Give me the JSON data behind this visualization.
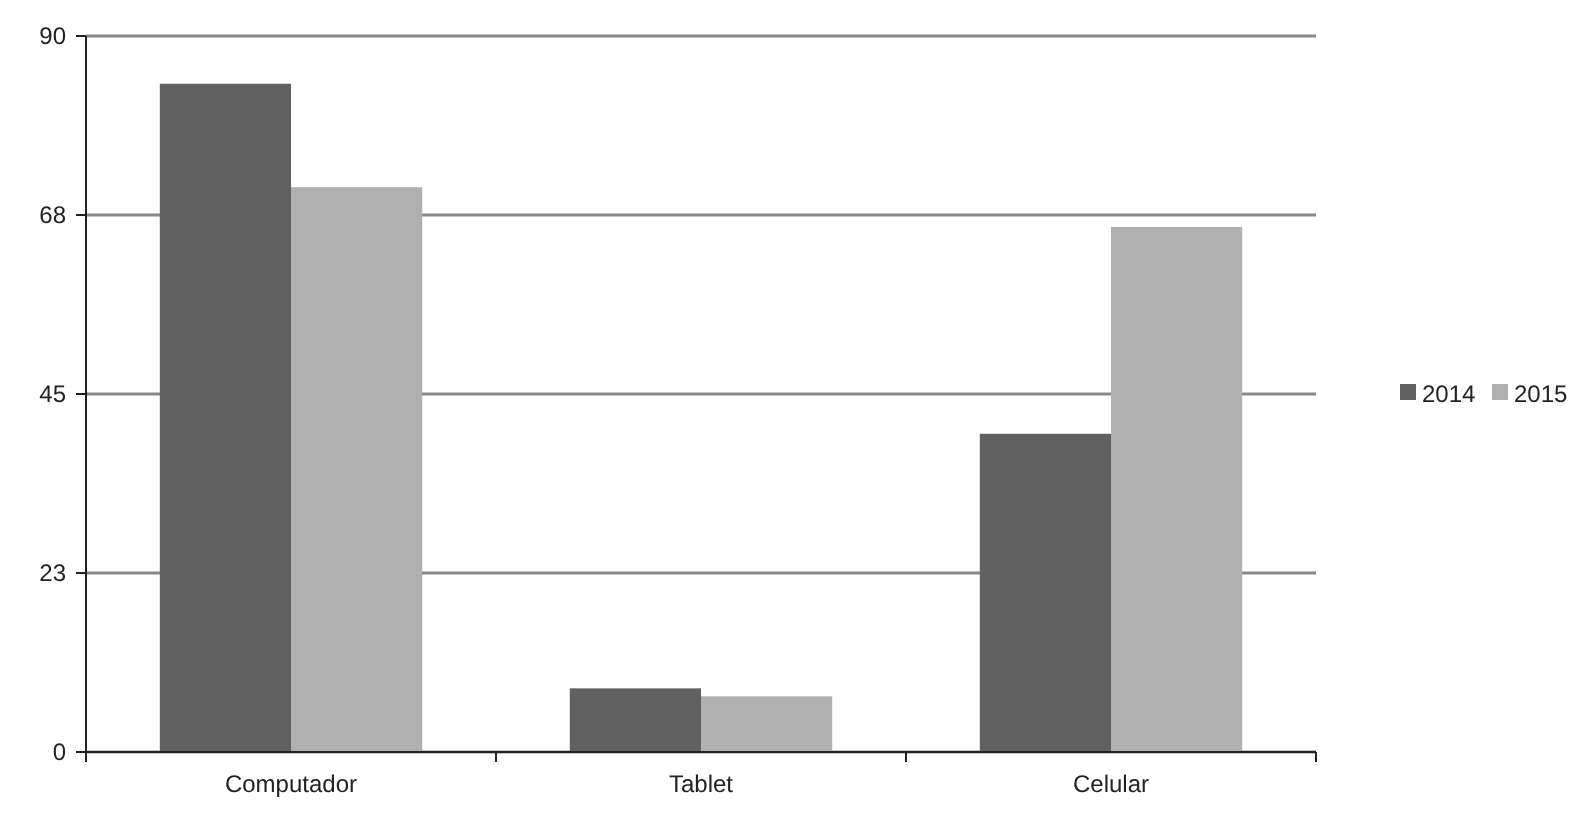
{
  "chart_data": {
    "type": "bar",
    "categories": [
      "Computador",
      "Tablet",
      "Celular"
    ],
    "series": [
      {
        "name": "2014",
        "color": "#606060",
        "values": [
          84,
          8,
          40
        ]
      },
      {
        "name": "2015",
        "color": "#b0b0b0",
        "values": [
          71,
          7,
          66
        ]
      }
    ],
    "ylim": [
      0,
      90
    ],
    "yticks": [
      0,
      {
        "value": 22.5,
        "label": "23"
      },
      45,
      {
        "value": 67.5,
        "label": "68"
      },
      90
    ],
    "grid": "y",
    "legend": "right"
  }
}
